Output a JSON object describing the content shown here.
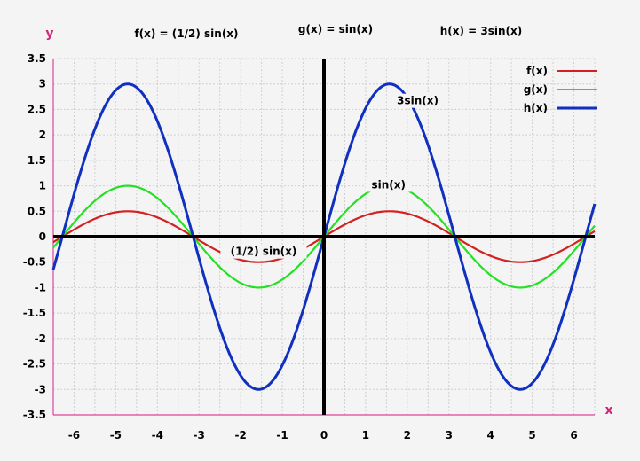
{
  "chart_data": {
    "type": "line",
    "xlabel": "x",
    "ylabel": "y",
    "xlim": [
      -6.5,
      6.5
    ],
    "ylim": [
      -3.5,
      3.5
    ],
    "grid": true,
    "legend_position": "top-right",
    "headings": [
      "f(x) = (1/2) sin(x)",
      "g(x) = sin(x)",
      "h(x) = 3sin(x)"
    ],
    "x_ticks": [
      -6,
      -5,
      -4,
      -3,
      -2,
      -1,
      0,
      1,
      2,
      3,
      4,
      5,
      6
    ],
    "y_ticks": [
      -3.5,
      -3,
      -2.5,
      -2,
      -1.5,
      -1,
      -0.5,
      0,
      0.5,
      1,
      1.5,
      2,
      2.5,
      3,
      3.5
    ],
    "series": [
      {
        "name": "f(x)",
        "expression": "(1/2) sin(x)",
        "amplitude": 0.5,
        "color": "#d42020"
      },
      {
        "name": "g(x)",
        "expression": "sin(x)",
        "amplitude": 1,
        "color": "#22e022"
      },
      {
        "name": "h(x)",
        "expression": "3sin(x)",
        "amplitude": 3,
        "color": "#1030c0"
      }
    ],
    "annotations": [
      {
        "text": "3sin(x)",
        "x": 2.25,
        "y": 2.6
      },
      {
        "text": "sin(x)",
        "x": 1.55,
        "y": 0.95
      },
      {
        "text": "(1/2) sin(x)",
        "x": -1.45,
        "y": -0.36
      }
    ]
  }
}
